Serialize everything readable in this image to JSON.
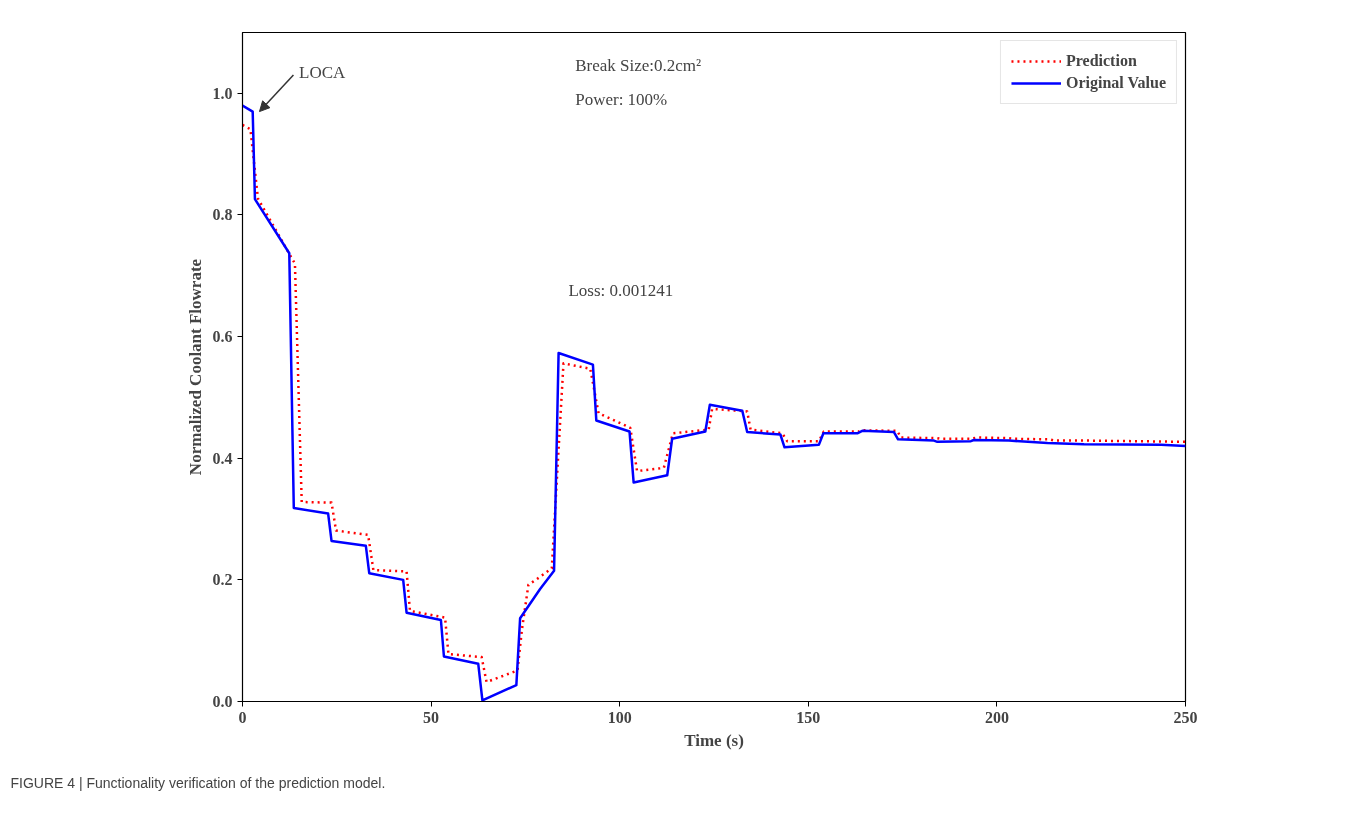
{
  "chart_data": {
    "type": "line",
    "xlabel": "Time (s)",
    "ylabel": "Normalized Coolant Flowrate",
    "xlim": [
      0,
      250
    ],
    "ylim": [
      0,
      1.1
    ],
    "xticks": [
      0,
      50,
      100,
      150,
      200,
      250
    ],
    "yticks": [
      {
        "value": 0,
        "label": "0.0"
      },
      0.2,
      0.4,
      0.6,
      0.8,
      {
        "value": 1,
        "label": "1.0"
      }
    ],
    "grid": false,
    "legend": "top right",
    "series": [
      {
        "name": "Prediction",
        "color": "#ff0000",
        "line_style": "dotted",
        "x": [
          0,
          2.1,
          4.1,
          12.6,
          13.9,
          15.7,
          23.6,
          24.8,
          33.3,
          34.7,
          43.5,
          44.4,
          53.7,
          54.6,
          63.4,
          64.7,
          72.9,
          74.1,
          75.8,
          78,
          82,
          85.1,
          92.2,
          94.4,
          102.8,
          104.6,
          111.7,
          114.1,
          123.6,
          124.5,
          133.8,
          134.7,
          143.1,
          144.4,
          152.8,
          154.1,
          163.4,
          163.9,
          173.6,
          174.5,
          184.2,
          185.1,
          193,
          194.9,
          203.2,
          204.6,
          213.9,
          215.2,
          223.8,
          250
        ],
        "values": [
          0.948,
          0.941,
          0.827,
          0.734,
          0.72,
          0.328,
          0.327,
          0.281,
          0.274,
          0.216,
          0.214,
          0.149,
          0.138,
          0.078,
          0.073,
          0.032,
          0.051,
          0.119,
          0.192,
          0.201,
          0.219,
          0.556,
          0.547,
          0.474,
          0.45,
          0.379,
          0.384,
          0.441,
          0.447,
          0.481,
          0.477,
          0.447,
          0.441,
          0.428,
          0.428,
          0.444,
          0.444,
          0.446,
          0.445,
          0.434,
          0.433,
          0.432,
          0.432,
          0.434,
          0.433,
          0.432,
          0.431,
          0.429,
          0.429,
          0.427
        ]
      },
      {
        "name": "Original Value",
        "color": "#0000ff",
        "line_style": "solid",
        "x": [
          0,
          2.7,
          3.3,
          12.4,
          13.6,
          22.7,
          23.6,
          32.7,
          33.6,
          42.6,
          43.5,
          52.6,
          53.4,
          62.5,
          63.6,
          72.6,
          73.6,
          78.9,
          82.6,
          83.8,
          92.9,
          93.8,
          102.6,
          103.7,
          112.6,
          113.9,
          122.7,
          123.9,
          132.5,
          133.8,
          142.6,
          143.7,
          152.8,
          154,
          163,
          164.3,
          172.7,
          173.8,
          183.3,
          184.2,
          193.1,
          193.9,
          203.2,
          213.4,
          223.1,
          243.5,
          250
        ],
        "values": [
          0.98,
          0.97,
          0.826,
          0.737,
          0.318,
          0.309,
          0.264,
          0.256,
          0.211,
          0.2,
          0.146,
          0.134,
          0.074,
          0.062,
          0.002,
          0.027,
          0.137,
          0.185,
          0.215,
          0.573,
          0.554,
          0.462,
          0.444,
          0.36,
          0.372,
          0.432,
          0.444,
          0.488,
          0.478,
          0.443,
          0.439,
          0.418,
          0.422,
          0.441,
          0.441,
          0.445,
          0.443,
          0.431,
          0.429,
          0.427,
          0.428,
          0.43,
          0.429,
          0.425,
          0.423,
          0.422,
          0.42
        ]
      }
    ],
    "annotations": [
      {
        "text": "LOCA",
        "x": 3,
        "y": 0.97
      },
      "Break Size:0.2cm²",
      "Power: 100%",
      "Loss: 0.001241",
      "FIGURE 4 | Functionality verification of the prediction model."
    ]
  }
}
